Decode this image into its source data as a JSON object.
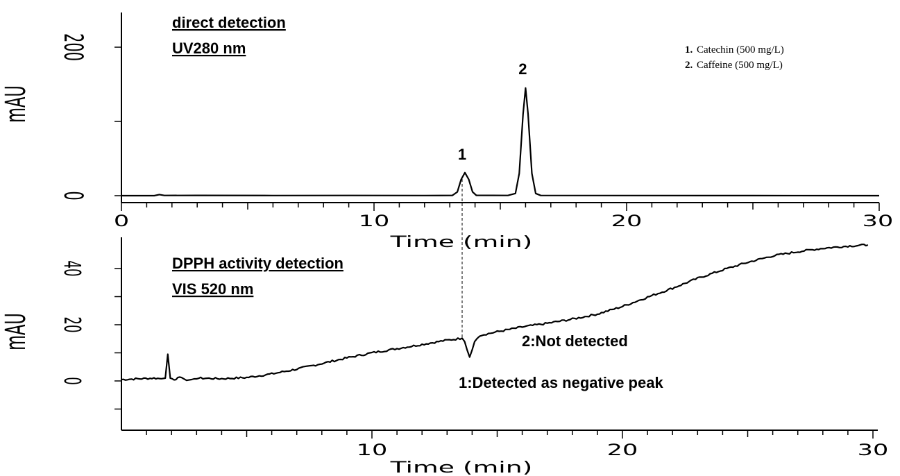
{
  "chart_data": [
    {
      "type": "line",
      "title_lines": [
        "direct detection",
        "UV280 nm"
      ],
      "xlabel": "Time (min)",
      "ylabel": "mAU",
      "xlim": [
        0,
        30
      ],
      "ylim": [
        -5,
        250
      ],
      "x_ticks": [
        0,
        10,
        20,
        30
      ],
      "y_ticks": [
        0,
        200
      ],
      "peak_labels": [
        {
          "text": "1",
          "x": 13.6,
          "y": 30
        },
        {
          "text": "2",
          "x": 16.0,
          "y": 145
        }
      ],
      "legend": [
        {
          "num": "1.",
          "text": "Catechin (500 mg/L)"
        },
        {
          "num": "2.",
          "text": "Caffeine  (500 mg/L)"
        }
      ],
      "series": [
        {
          "points": [
            [
              0,
              0
            ],
            [
              1.3,
              0
            ],
            [
              1.5,
              1.5
            ],
            [
              1.7,
              0.3
            ],
            [
              3,
              0.4
            ],
            [
              6,
              0.2
            ],
            [
              9,
              0.3
            ],
            [
              12,
              0.2
            ],
            [
              13.1,
              0.3
            ],
            [
              13.3,
              5
            ],
            [
              13.45,
              22
            ],
            [
              13.6,
              31
            ],
            [
              13.75,
              22
            ],
            [
              13.9,
              5
            ],
            [
              14.05,
              0.5
            ],
            [
              15.3,
              0.3
            ],
            [
              15.6,
              3
            ],
            [
              15.75,
              30
            ],
            [
              15.9,
              110
            ],
            [
              16.0,
              145
            ],
            [
              16.1,
              110
            ],
            [
              16.25,
              30
            ],
            [
              16.4,
              3
            ],
            [
              16.6,
              0.3
            ],
            [
              20,
              0.2
            ],
            [
              25,
              0.1
            ],
            [
              30,
              0
            ]
          ]
        }
      ]
    },
    {
      "type": "line",
      "title_lines": [
        "DPPH activity detection",
        "VIS 520 nm"
      ],
      "xlabel": "Time (min)",
      "ylabel": "mAU",
      "xlim": [
        0,
        30
      ],
      "ylim": [
        -17,
        50
      ],
      "x_ticks": [
        10,
        20,
        30
      ],
      "y_ticks": [
        0,
        20,
        40
      ],
      "annotations": [
        {
          "text": "2:Not detected"
        },
        {
          "text": "1:Detected as negative peak"
        }
      ],
      "series": [
        {
          "points": [
            [
              0,
              0.5
            ],
            [
              1.3,
              1
            ],
            [
              1.6,
              0.8
            ],
            [
              1.75,
              1
            ],
            [
              1.85,
              9.5
            ],
            [
              1.95,
              1
            ],
            [
              2.1,
              0.6
            ],
            [
              2.4,
              1.2
            ],
            [
              2.6,
              0.2
            ],
            [
              2.8,
              0.5
            ],
            [
              3,
              1
            ],
            [
              4,
              0.8
            ],
            [
              5,
              1.2
            ],
            [
              6,
              2.5
            ],
            [
              7,
              4.2
            ],
            [
              8,
              6.2
            ],
            [
              9,
              8.2
            ],
            [
              10,
              10
            ],
            [
              11,
              11.5
            ],
            [
              12,
              13
            ],
            [
              13,
              14.5
            ],
            [
              13.6,
              15.2
            ],
            [
              13.7,
              14
            ],
            [
              13.8,
              11
            ],
            [
              13.9,
              8.5
            ],
            [
              14.0,
              11
            ],
            [
              14.1,
              14
            ],
            [
              14.3,
              16.2
            ],
            [
              15,
              17.5
            ],
            [
              16,
              19.2
            ],
            [
              17,
              20.5
            ],
            [
              18,
              22
            ],
            [
              19,
              23.8
            ],
            [
              20,
              26.5
            ],
            [
              21,
              29.8
            ],
            [
              22,
              33
            ],
            [
              23,
              36.5
            ],
            [
              24,
              39.5
            ],
            [
              25,
              42.2
            ],
            [
              26,
              44.5
            ],
            [
              27,
              46
            ],
            [
              28,
              47.2
            ],
            [
              29,
              48
            ],
            [
              29.8,
              48.4
            ]
          ]
        }
      ]
    }
  ]
}
